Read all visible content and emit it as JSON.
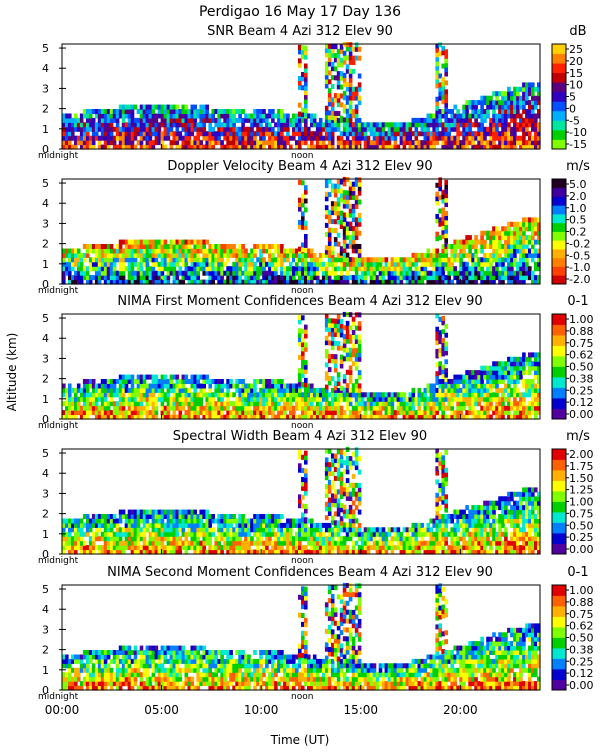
{
  "header": {
    "title_line1": "Perdigao  16 May 17 Day 136"
  },
  "shared": {
    "y_axis_label": "Altitude (km)",
    "x_axis_label": "Time (UT)",
    "x_ticks": [
      "00:00",
      "05:00",
      "10:00",
      "15:00",
      "20:00"
    ],
    "x_tick_hours": [
      0,
      5,
      10,
      15,
      20
    ],
    "x_range_hours": [
      0,
      24
    ],
    "y_ticks": [
      0,
      1,
      2,
      3,
      4,
      5
    ],
    "y_range_km": [
      0,
      5.2
    ],
    "midnight_label": "midnight",
    "noon_label": "noon"
  },
  "chart_data": [
    {
      "type": "heatmap",
      "title": "SNR Beam 4 Azi 312 Elev 90",
      "unit": "dB",
      "colorbar_ticks": [
        "25",
        "20",
        "15",
        "10",
        "5",
        "0",
        "-5",
        "-10",
        "-15"
      ],
      "colors": [
        "#7fff00",
        "#00d000",
        "#00e8a0",
        "#00b0ff",
        "#0050ff",
        "#3000c0",
        "#5a0080",
        "#c00000",
        "#ff2000",
        "#ff8000",
        "#ffd000"
      ],
      "xlabel": "",
      "ylabel": "Altitude (km)",
      "xlim": [
        0,
        24
      ],
      "ylim": [
        0,
        5.2
      ]
    },
    {
      "type": "heatmap",
      "title": "Doppler Velocity Beam 4 Azi 312 Elev 90",
      "unit": "m/s",
      "colorbar_ticks": [
        "5.0",
        "2.0",
        "1.0",
        "0.5",
        "0.2",
        "-0.2",
        "-0.5",
        "-1.0",
        "-2.0"
      ],
      "colors": [
        "#d00000",
        "#ff4000",
        "#ff8000",
        "#ffb000",
        "#ffff00",
        "#7fff00",
        "#00d000",
        "#00e8d0",
        "#0080ff",
        "#0000d0",
        "#4000a0",
        "#200020"
      ],
      "xlabel": "",
      "ylabel": "Altitude (km)",
      "xlim": [
        0,
        24
      ],
      "ylim": [
        0,
        5.2
      ]
    },
    {
      "type": "heatmap",
      "title": "NIMA First Moment Confidences Beam 4 Azi 312 Elev 90",
      "unit": "0-1",
      "colorbar_ticks": [
        "1.00",
        "0.88",
        "0.75",
        "0.62",
        "0.50",
        "0.38",
        "0.25",
        "0.12",
        "0.00"
      ],
      "colors": [
        "#5000a0",
        "#0000d0",
        "#0080ff",
        "#00e8d0",
        "#00d000",
        "#7fff00",
        "#ffff00",
        "#ffb000",
        "#ff6000",
        "#e00000"
      ],
      "xlabel": "",
      "ylabel": "Altitude (km)",
      "xlim": [
        0,
        24
      ],
      "ylim": [
        0,
        5.2
      ]
    },
    {
      "type": "heatmap",
      "title": "Spectral Width Beam 4 Azi 312 Elev 90",
      "unit": "m/s",
      "colorbar_ticks": [
        "2.00",
        "1.75",
        "1.50",
        "1.25",
        "1.00",
        "0.75",
        "0.50",
        "0.25",
        "0.00"
      ],
      "colors": [
        "#5000a0",
        "#0000d0",
        "#0080ff",
        "#00e8d0",
        "#00d000",
        "#7fff00",
        "#ffff00",
        "#ffb000",
        "#ff6000",
        "#e00000"
      ],
      "xlabel": "",
      "ylabel": "Altitude (km)",
      "xlim": [
        0,
        24
      ],
      "ylim": [
        0,
        5.2
      ]
    },
    {
      "type": "heatmap",
      "title": "NIMA Second Moment Confidences Beam 4 Azi 312 Elev 90",
      "unit": "0-1",
      "colorbar_ticks": [
        "1.00",
        "0.88",
        "0.75",
        "0.62",
        "0.50",
        "0.38",
        "0.25",
        "0.12",
        "0.00"
      ],
      "colors": [
        "#5000a0",
        "#0000d0",
        "#0080ff",
        "#00e8d0",
        "#00d000",
        "#7fff00",
        "#ffff00",
        "#ffb000",
        "#ff6000",
        "#e00000"
      ],
      "xlabel": "Time (UT)",
      "ylabel": "Altitude (km)",
      "xlim": [
        0,
        24
      ],
      "ylim": [
        0,
        5.2
      ]
    }
  ]
}
